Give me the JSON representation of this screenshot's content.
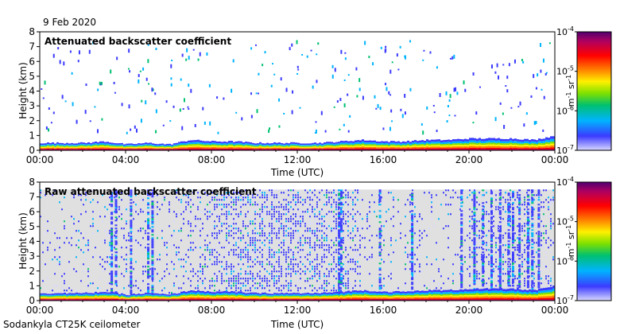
{
  "header": {
    "date": "9 Feb 2020"
  },
  "footer": {
    "instrument": "Sodankyla CT25K ceilometer"
  },
  "colors": {
    "background_raw": "#e0e0e0",
    "colormap": [
      "#d8d8ff",
      "#3b3bff",
      "#00b4ff",
      "#00c070",
      "#7de000",
      "#fff000",
      "#ff8000",
      "#ff0000",
      "#b00060",
      "#500070"
    ]
  },
  "chart_data": [
    {
      "type": "heatmap",
      "title": "Attenuated backscatter coefficient",
      "xlabel": "Time (UTC)",
      "ylabel": "Height (km)",
      "x_ticks": [
        "00:00",
        "04:00",
        "08:00",
        "12:00",
        "16:00",
        "20:00",
        "00:00"
      ],
      "xlim_hours": [
        0,
        24
      ],
      "y_ticks": [
        "0",
        "1",
        "2",
        "3",
        "4",
        "5",
        "6",
        "7",
        "8"
      ],
      "ylim_km": [
        0,
        8
      ],
      "colorbar": {
        "label": "m-1 sr-1",
        "label_base": "m",
        "label_exp1": "-1",
        "label_mid": " sr",
        "label_exp2": "-1",
        "tick_base": "10",
        "tick_exponents": [
          "-7",
          "-6",
          "-5",
          "-4"
        ]
      },
      "boundary_layer_top_km": [
        0.5,
        0.5,
        0.5,
        0.6,
        0.4,
        0.5,
        0.4,
        0.7,
        0.6,
        0.6,
        0.5,
        0.5,
        0.5,
        0.5,
        0.6,
        0.7,
        0.6,
        0.6,
        0.7,
        0.7,
        0.8,
        0.8,
        0.8,
        0.7,
        1.0
      ],
      "scattered_returns": "sparse echoes up to ~7.5 km"
    },
    {
      "type": "heatmap",
      "title": "Raw attenuated backscatter coefficient",
      "xlabel": "Time (UTC)",
      "ylabel": "Height (km)",
      "x_ticks": [
        "00:00",
        "04:00",
        "08:00",
        "12:00",
        "16:00",
        "20:00",
        "00:00"
      ],
      "xlim_hours": [
        0,
        24
      ],
      "y_ticks": [
        "0",
        "1",
        "2",
        "3",
        "4",
        "5",
        "6",
        "7",
        "8"
      ],
      "ylim_km": [
        0,
        8
      ],
      "data_top_km": 7.5,
      "colorbar": {
        "label": "m-1 sr-1",
        "label_base": "m",
        "label_exp1": "-1",
        "label_mid": " sr",
        "label_exp2": "-1",
        "tick_base": "10",
        "tick_exponents": [
          "-7",
          "-6",
          "-5",
          "-4"
        ]
      },
      "noise_density_by_hour": [
        0.18,
        0.18,
        0.2,
        0.35,
        0.3,
        0.2,
        0.35,
        0.55,
        0.75,
        0.85,
        0.9,
        0.9,
        0.9,
        0.85,
        0.7,
        0.2,
        0.2,
        0.3,
        0.2,
        0.2,
        0.55,
        0.6,
        0.6,
        0.5,
        0.3
      ],
      "dense_columns_hours": [
        3.3,
        3.5,
        4.2,
        5.0,
        5.2,
        13.9,
        14.0,
        15.8,
        17.3,
        19.6,
        20.2,
        20.6,
        21.0,
        21.4,
        21.8,
        22.0,
        22.3,
        22.7,
        22.9,
        23.2
      ]
    }
  ]
}
